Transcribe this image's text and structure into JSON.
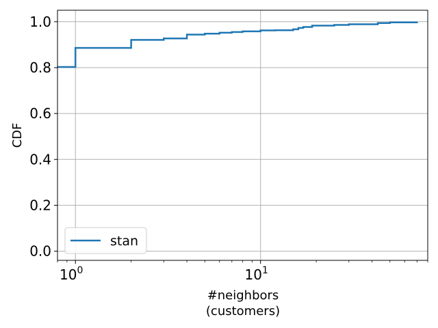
{
  "chart_data": {
    "type": "line",
    "xscale": "log",
    "xlim": [
      0.8,
      80
    ],
    "ylim": [
      -0.04,
      1.05
    ],
    "xlabel_lines": [
      "#neighbors",
      "(customers)"
    ],
    "ylabel": "CDF",
    "grid": true,
    "legend_position": "lower-left",
    "x_tick_labels": [
      {
        "value": 1,
        "base": "10",
        "exp": "0"
      },
      {
        "value": 10,
        "base": "10",
        "exp": "1"
      }
    ],
    "y_tick_labels": [
      {
        "value": 0.0,
        "label": "0.0"
      },
      {
        "value": 0.2,
        "label": "0.2"
      },
      {
        "value": 0.4,
        "label": "0.4"
      },
      {
        "value": 0.6,
        "label": "0.6"
      },
      {
        "value": 0.8,
        "label": "0.8"
      },
      {
        "value": 1.0,
        "label": "1.0"
      }
    ],
    "series": [
      {
        "name": "stan",
        "color": "#1f77b4",
        "step": true,
        "points": [
          [
            0.8,
            0.803
          ],
          [
            1,
            0.886
          ],
          [
            2,
            0.921
          ],
          [
            3,
            0.927
          ],
          [
            4,
            0.944
          ],
          [
            5,
            0.948
          ],
          [
            6,
            0.952
          ],
          [
            7,
            0.955
          ],
          [
            8,
            0.958
          ],
          [
            10,
            0.962
          ],
          [
            12,
            0.963
          ],
          [
            15,
            0.967
          ],
          [
            16,
            0.973
          ],
          [
            17,
            0.977
          ],
          [
            19,
            0.983
          ],
          [
            25,
            0.986
          ],
          [
            30,
            0.989
          ],
          [
            43,
            0.994
          ],
          [
            50,
            0.997
          ],
          [
            70,
            1.0
          ]
        ]
      }
    ]
  }
}
